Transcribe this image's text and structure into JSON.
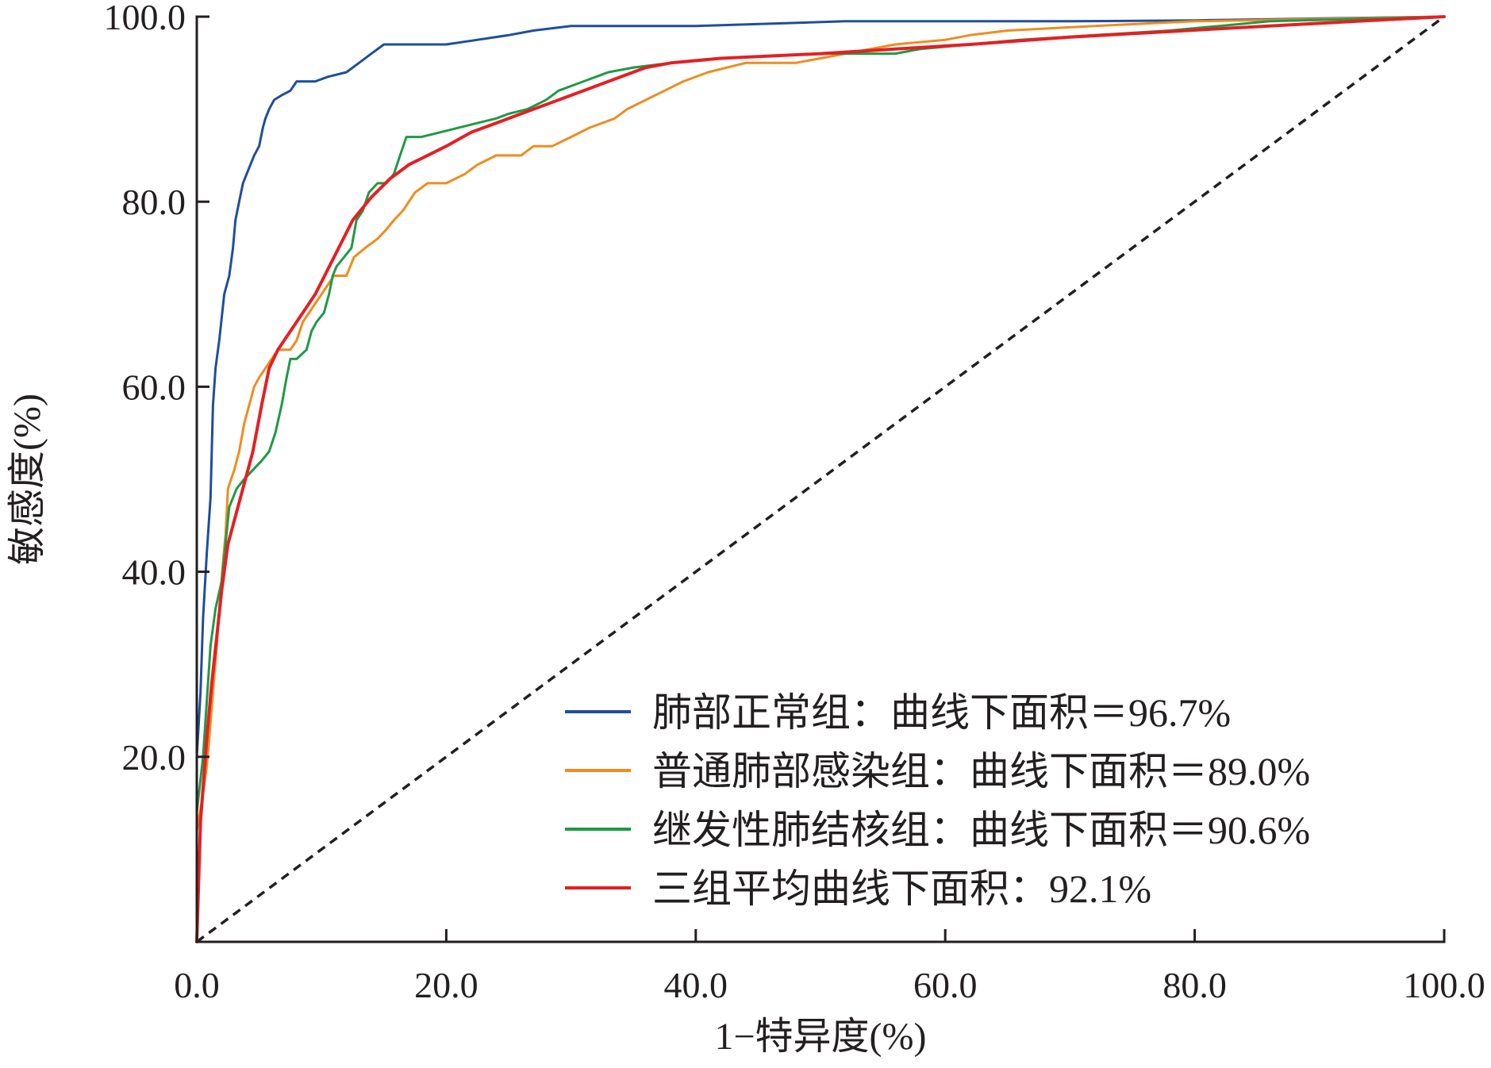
{
  "chart_data": {
    "type": "line",
    "subtype": "roc",
    "title": "",
    "xlabel": "1−特异度(%)",
    "ylabel": "敏感度(%)",
    "xlim": [
      0,
      100
    ],
    "ylim": [
      0,
      100
    ],
    "x_ticks": [
      0,
      20,
      40,
      60,
      80,
      100
    ],
    "y_ticks": [
      20,
      40,
      60,
      80,
      100
    ],
    "x_tick_labels": [
      "0.0",
      "20.0",
      "40.0",
      "60.0",
      "80.0",
      "100.0"
    ],
    "y_tick_labels": [
      "20.0",
      "40.0",
      "60.0",
      "80.0",
      "100.0"
    ],
    "grid": false,
    "legend_position": "bottom-right",
    "reference_line": {
      "style": "dashed",
      "color": "#231f20",
      "points": [
        [
          0,
          0
        ],
        [
          100,
          100
        ]
      ]
    },
    "series": [
      {
        "name": "肺部正常组：曲线下面积＝96.7%",
        "color": "#1f4e9c",
        "points": [
          [
            0,
            0
          ],
          [
            0,
            20
          ],
          [
            0.3,
            27
          ],
          [
            0.5,
            35
          ],
          [
            0.8,
            42
          ],
          [
            1.1,
            48
          ],
          [
            1.3,
            58
          ],
          [
            1.5,
            62
          ],
          [
            1.8,
            65
          ],
          [
            2.2,
            70
          ],
          [
            2.6,
            72
          ],
          [
            2.9,
            75
          ],
          [
            3.1,
            78
          ],
          [
            3.4,
            80
          ],
          [
            3.7,
            82
          ],
          [
            4,
            83
          ],
          [
            4.3,
            84
          ],
          [
            4.6,
            85
          ],
          [
            5,
            86
          ],
          [
            5.3,
            88
          ],
          [
            5.5,
            89
          ],
          [
            5.8,
            90
          ],
          [
            6.2,
            91
          ],
          [
            6.8,
            91.5
          ],
          [
            7.5,
            92
          ],
          [
            8,
            93
          ],
          [
            9.5,
            93
          ],
          [
            10.5,
            93.5
          ],
          [
            12,
            94
          ],
          [
            13,
            95
          ],
          [
            14,
            96
          ],
          [
            15,
            97
          ],
          [
            17,
            97
          ],
          [
            20,
            97
          ],
          [
            22.5,
            97.5
          ],
          [
            25,
            98
          ],
          [
            27,
            98.5
          ],
          [
            30,
            99
          ],
          [
            40,
            99
          ],
          [
            52,
            99.5
          ],
          [
            70,
            99.5
          ],
          [
            80,
            99.6
          ],
          [
            90,
            99.8
          ],
          [
            100,
            100
          ]
        ]
      },
      {
        "name": "普通肺部感染组：曲线下面积＝89.0%",
        "color": "#f08c1e",
        "points": [
          [
            0,
            0
          ],
          [
            0,
            12
          ],
          [
            0.5,
            16
          ],
          [
            0.8,
            19
          ],
          [
            1,
            22
          ],
          [
            1.3,
            27
          ],
          [
            1.6,
            32
          ],
          [
            1.8,
            36
          ],
          [
            2.1,
            41
          ],
          [
            2.3,
            44
          ],
          [
            2.5,
            49
          ],
          [
            3,
            51
          ],
          [
            3.4,
            53
          ],
          [
            3.8,
            56
          ],
          [
            4.2,
            58
          ],
          [
            4.6,
            60
          ],
          [
            5,
            61
          ],
          [
            5.5,
            62
          ],
          [
            6,
            63
          ],
          [
            6.5,
            64
          ],
          [
            7,
            64
          ],
          [
            7.5,
            64
          ],
          [
            8,
            65
          ],
          [
            8.5,
            67
          ],
          [
            9,
            68
          ],
          [
            9.5,
            69
          ],
          [
            10,
            70
          ],
          [
            10.5,
            71
          ],
          [
            11,
            72
          ],
          [
            12,
            72
          ],
          [
            12.6,
            74
          ],
          [
            13.5,
            75
          ],
          [
            14.5,
            76
          ],
          [
            15.2,
            77
          ],
          [
            15.8,
            78
          ],
          [
            16.5,
            79
          ],
          [
            17.5,
            81
          ],
          [
            18.5,
            82
          ],
          [
            20,
            82
          ],
          [
            21.5,
            83
          ],
          [
            22.5,
            84
          ],
          [
            24,
            85
          ],
          [
            26,
            85
          ],
          [
            27,
            86
          ],
          [
            28.5,
            86
          ],
          [
            30,
            87
          ],
          [
            31.5,
            88
          ],
          [
            33.5,
            89
          ],
          [
            34.5,
            90
          ],
          [
            36,
            91
          ],
          [
            37.5,
            92
          ],
          [
            39,
            93
          ],
          [
            41,
            94
          ],
          [
            44,
            95
          ],
          [
            48,
            95
          ],
          [
            50,
            95.5
          ],
          [
            52,
            96
          ],
          [
            54,
            96.5
          ],
          [
            56,
            97
          ],
          [
            60,
            97.5
          ],
          [
            62,
            98
          ],
          [
            65,
            98.5
          ],
          [
            72,
            99
          ],
          [
            80,
            99.5
          ],
          [
            100,
            100
          ]
        ]
      },
      {
        "name": "继发性肺结核组：曲线下面积＝90.6%",
        "color": "#1f9a45",
        "points": [
          [
            0,
            0
          ],
          [
            0,
            14
          ],
          [
            0.5,
            20
          ],
          [
            0.8,
            26
          ],
          [
            1.1,
            32
          ],
          [
            1.5,
            36
          ],
          [
            2,
            39
          ],
          [
            2.3,
            43
          ],
          [
            2.6,
            47
          ],
          [
            3.2,
            49
          ],
          [
            3.8,
            50
          ],
          [
            4.5,
            51
          ],
          [
            5.2,
            52
          ],
          [
            5.8,
            53
          ],
          [
            6.3,
            55
          ],
          [
            6.8,
            58
          ],
          [
            7.2,
            61
          ],
          [
            7.5,
            63
          ],
          [
            8,
            63
          ],
          [
            8.8,
            64
          ],
          [
            9.2,
            66
          ],
          [
            9.6,
            67
          ],
          [
            10.2,
            68
          ],
          [
            10.6,
            70
          ],
          [
            10.9,
            72
          ],
          [
            11.2,
            73
          ],
          [
            11.8,
            74
          ],
          [
            12.4,
            75
          ],
          [
            12.8,
            78
          ],
          [
            13.3,
            79
          ],
          [
            13.8,
            81
          ],
          [
            14.5,
            82
          ],
          [
            15.2,
            82
          ],
          [
            15.8,
            83
          ],
          [
            16.3,
            85
          ],
          [
            16.8,
            87
          ],
          [
            18,
            87
          ],
          [
            19.5,
            87.5
          ],
          [
            21,
            88
          ],
          [
            22.5,
            88.5
          ],
          [
            24,
            89
          ],
          [
            25,
            89.5
          ],
          [
            26.5,
            90
          ],
          [
            28,
            91
          ],
          [
            29,
            92
          ],
          [
            31,
            93
          ],
          [
            33,
            94
          ],
          [
            35,
            94.5
          ],
          [
            38,
            95
          ],
          [
            42,
            95.5
          ],
          [
            50,
            96
          ],
          [
            56,
            96
          ],
          [
            58,
            96.5
          ],
          [
            62,
            97
          ],
          [
            66,
            97.5
          ],
          [
            72,
            98
          ],
          [
            78,
            98.5
          ],
          [
            82,
            99
          ],
          [
            86,
            99.5
          ],
          [
            100,
            100
          ]
        ]
      },
      {
        "name": "三组平均曲线下面积：92.1%",
        "color": "#e51f24",
        "points": [
          [
            0,
            0
          ],
          [
            0.3,
            13
          ],
          [
            0.8,
            22
          ],
          [
            1.2,
            28
          ],
          [
            1.6,
            33
          ],
          [
            2,
            38
          ],
          [
            2.5,
            43
          ],
          [
            3.5,
            48
          ],
          [
            4.5,
            53
          ],
          [
            5.2,
            58
          ],
          [
            5.8,
            62
          ],
          [
            6.5,
            64
          ],
          [
            8,
            67
          ],
          [
            9.5,
            70
          ],
          [
            11,
            74
          ],
          [
            12.5,
            78
          ],
          [
            14,
            80.5
          ],
          [
            15.5,
            82.5
          ],
          [
            17,
            84
          ],
          [
            18.5,
            85
          ],
          [
            20,
            86
          ],
          [
            22,
            87.5
          ],
          [
            24,
            88.5
          ],
          [
            26,
            89.5
          ],
          [
            28,
            90.5
          ],
          [
            30,
            91.5
          ],
          [
            32,
            92.5
          ],
          [
            34,
            93.5
          ],
          [
            36,
            94.5
          ],
          [
            38,
            95
          ],
          [
            42,
            95.5
          ],
          [
            50,
            96
          ],
          [
            56,
            96.5
          ],
          [
            62,
            97
          ],
          [
            70,
            97.8
          ],
          [
            78,
            98.4
          ],
          [
            86,
            99
          ],
          [
            93,
            99.5
          ],
          [
            100,
            100
          ]
        ]
      }
    ]
  }
}
